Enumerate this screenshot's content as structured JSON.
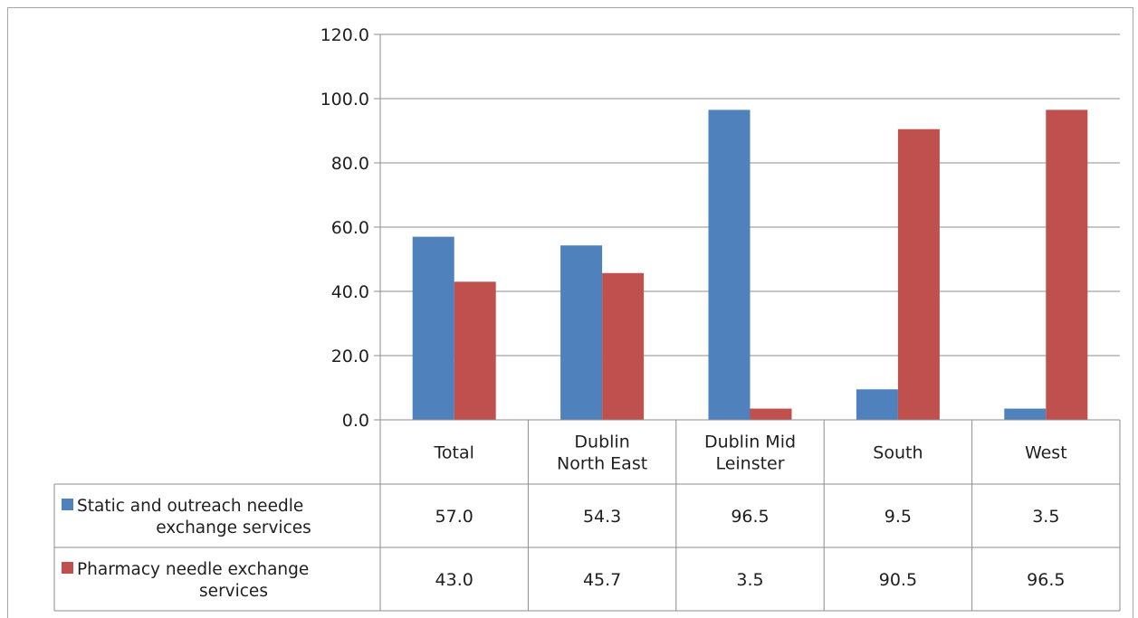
{
  "chart_data": {
    "type": "bar",
    "title": "",
    "xlabel": "",
    "ylabel": "",
    "ylim": [
      0,
      120
    ],
    "yticks": [
      "0.0",
      "20.0",
      "40.0",
      "60.0",
      "80.0",
      "100.0",
      "120.0"
    ],
    "grid": true,
    "legend": "data-table",
    "categories": [
      [
        "Total"
      ],
      [
        "Dublin",
        "North East"
      ],
      [
        "Dublin Mid",
        "Leinster"
      ],
      [
        "South"
      ],
      [
        "West"
      ]
    ],
    "series": [
      {
        "name_lines": [
          "Static and outreach needle",
          "exchange services"
        ],
        "color": "#4f81bd",
        "values": [
          57.0,
          54.3,
          96.5,
          9.5,
          3.5
        ],
        "labels": [
          "57.0",
          "54.3",
          "96.5",
          "9.5",
          "3.5"
        ]
      },
      {
        "name_lines": [
          "Pharmacy needle exchange",
          "services"
        ],
        "color": "#c0504d",
        "values": [
          43.0,
          45.7,
          3.5,
          90.5,
          96.5
        ],
        "labels": [
          "43.0",
          "45.7",
          "3.5",
          "90.5",
          "96.5"
        ]
      }
    ]
  }
}
